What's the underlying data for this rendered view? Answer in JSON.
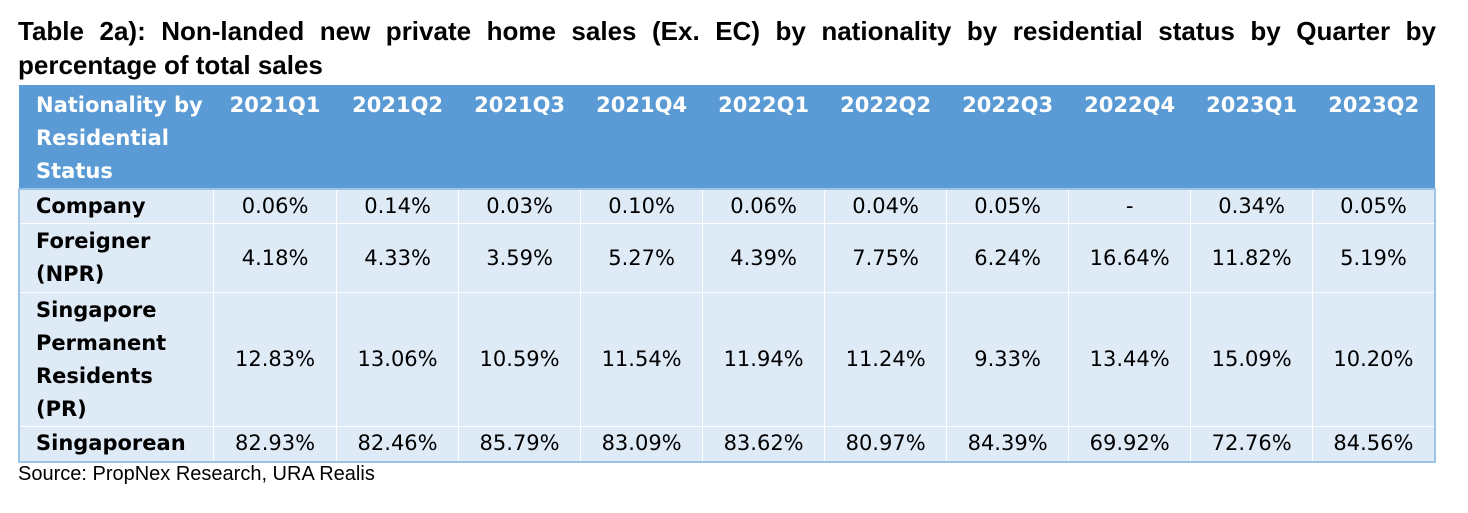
{
  "title": "Table 2a): Non-landed new private home sales (Ex. EC) by nationality by residential status by Quarter by percentage of total sales",
  "table": {
    "header": {
      "label": "Nationality by Residential Status",
      "quarters": [
        "2021Q1",
        "2021Q2",
        "2021Q3",
        "2021Q4",
        "2022Q1",
        "2022Q2",
        "2022Q3",
        "2022Q4",
        "2023Q1",
        "2023Q2"
      ]
    },
    "rows": [
      {
        "label": "Company",
        "values": [
          "0.06%",
          "0.14%",
          "0.03%",
          "0.10%",
          "0.06%",
          "0.04%",
          "0.05%",
          "-",
          "0.34%",
          "0.05%"
        ]
      },
      {
        "label": "Foreigner (NPR)",
        "values": [
          "4.18%",
          "4.33%",
          "3.59%",
          "5.27%",
          "4.39%",
          "7.75%",
          "6.24%",
          "16.64%",
          "11.82%",
          "5.19%"
        ]
      },
      {
        "label": "Singapore Permanent Residents (PR)",
        "values": [
          "12.83%",
          "13.06%",
          "10.59%",
          "11.54%",
          "11.94%",
          "11.24%",
          "9.33%",
          "13.44%",
          "15.09%",
          "10.20%"
        ]
      },
      {
        "label": "Singaporean",
        "values": [
          "82.93%",
          "82.46%",
          "85.79%",
          "83.09%",
          "83.62%",
          "80.97%",
          "84.39%",
          "69.92%",
          "72.76%",
          "84.56%"
        ]
      }
    ]
  },
  "source": "Source: PropNex Research, URA Realis",
  "colors": {
    "header_bg": "#5b9bd5",
    "header_text": "#ffffff",
    "cell_bg": "#deeaf6",
    "border": "#9dc3e6"
  }
}
